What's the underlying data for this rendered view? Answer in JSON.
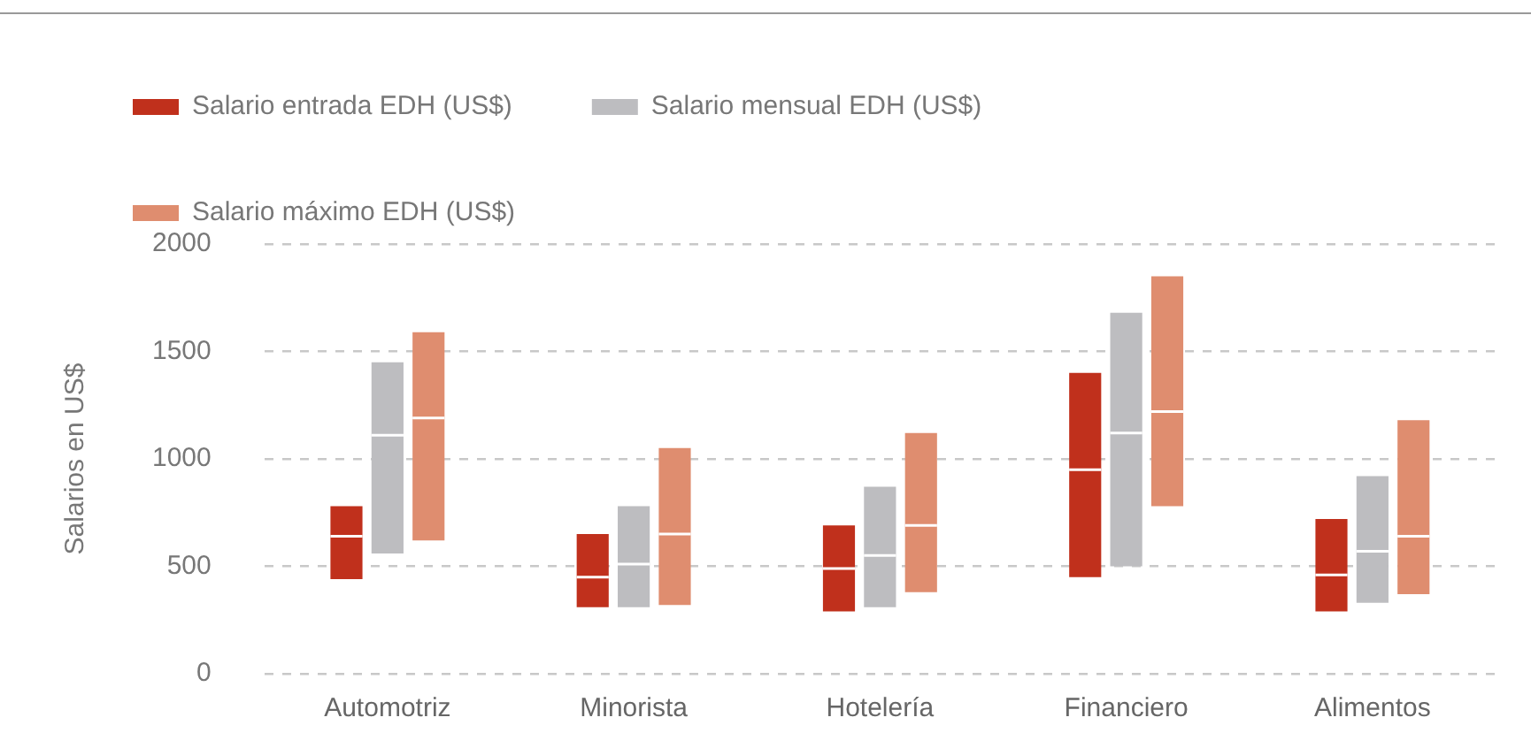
{
  "chart_data": {
    "type": "box",
    "ylabel": "Salarios en US$",
    "categories": [
      "Automotriz",
      "Minorista",
      "Hotelería",
      "Financiero",
      "Alimentos"
    ],
    "series": [
      {
        "name": "Salario entrada EDH (US$)",
        "color": "#c0301c",
        "boxes": [
          {
            "low": 440,
            "q1": 440,
            "median": 640,
            "q3": 780,
            "high": 780
          },
          {
            "low": 310,
            "q1": 310,
            "median": 450,
            "q3": 650,
            "high": 650
          },
          {
            "low": 290,
            "q1": 290,
            "median": 490,
            "q3": 690,
            "high": 690
          },
          {
            "low": 450,
            "q1": 450,
            "median": 950,
            "q3": 1400,
            "high": 1400
          },
          {
            "low": 290,
            "q1": 290,
            "median": 460,
            "q3": 720,
            "high": 720
          }
        ]
      },
      {
        "name": "Salario mensual EDH (US$)",
        "color": "#bdbdc0",
        "boxes": [
          {
            "low": 560,
            "q1": 560,
            "median": 1110,
            "q3": 1450,
            "high": 1450
          },
          {
            "low": 310,
            "q1": 310,
            "median": 510,
            "q3": 780,
            "high": 780
          },
          {
            "low": 310,
            "q1": 310,
            "median": 550,
            "q3": 870,
            "high": 870
          },
          {
            "low": 500,
            "q1": 500,
            "median": 1120,
            "q3": 1680,
            "high": 1680
          },
          {
            "low": 330,
            "q1": 330,
            "median": 570,
            "q3": 920,
            "high": 920
          }
        ]
      },
      {
        "name": "Salario máximo EDH (US$)",
        "color": "#df8d6f",
        "boxes": [
          {
            "low": 620,
            "q1": 620,
            "median": 1190,
            "q3": 1590,
            "high": 1590
          },
          {
            "low": 320,
            "q1": 320,
            "median": 650,
            "q3": 1050,
            "high": 1050
          },
          {
            "low": 380,
            "q1": 380,
            "median": 690,
            "q3": 1120,
            "high": 1120
          },
          {
            "low": 780,
            "q1": 780,
            "median": 1220,
            "q3": 1850,
            "high": 1850
          },
          {
            "low": 370,
            "q1": 370,
            "median": 640,
            "q3": 1180,
            "high": 1180
          }
        ]
      }
    ],
    "ylim": [
      0,
      2000
    ],
    "yticks": [
      0,
      500,
      1000,
      1500,
      2000
    ],
    "grid": "y",
    "legend": "top left"
  }
}
